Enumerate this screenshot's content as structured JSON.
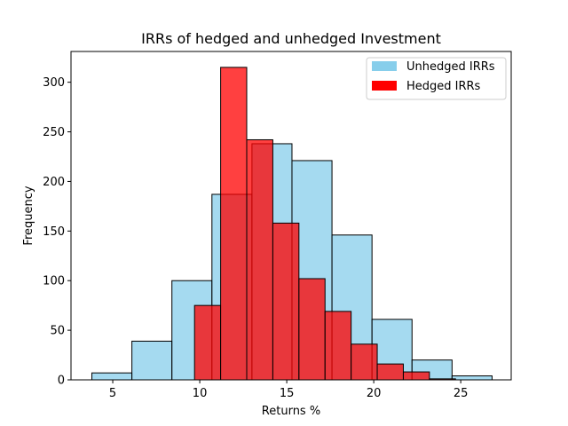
{
  "chart_data": {
    "type": "bar",
    "title": "IRRs of hedged and unhedged Investment",
    "xlabel": "Returns %",
    "ylabel": "Frequency",
    "xlim": [
      2.6,
      27.9
    ],
    "ylim": [
      0,
      331
    ],
    "xticks": [
      5,
      10,
      15,
      20,
      25
    ],
    "yticks": [
      0,
      50,
      100,
      150,
      200,
      250,
      300
    ],
    "legend_position": "top-right",
    "series": [
      {
        "name": "Unhedged IRRs",
        "color": "#87CEEB",
        "legend_color": "#87CEEB",
        "bins": [
          {
            "x0": 3.8,
            "x1": 6.1,
            "count": 7
          },
          {
            "x0": 6.1,
            "x1": 8.4,
            "count": 39
          },
          {
            "x0": 8.4,
            "x1": 10.7,
            "count": 100
          },
          {
            "x0": 10.7,
            "x1": 13.0,
            "count": 187
          },
          {
            "x0": 13.0,
            "x1": 15.3,
            "count": 238
          },
          {
            "x0": 15.3,
            "x1": 17.6,
            "count": 221
          },
          {
            "x0": 17.6,
            "x1": 19.9,
            "count": 146
          },
          {
            "x0": 19.9,
            "x1": 22.2,
            "count": 61
          },
          {
            "x0": 22.2,
            "x1": 24.5,
            "count": 20
          },
          {
            "x0": 24.5,
            "x1": 26.8,
            "count": 4
          }
        ]
      },
      {
        "name": "Hedged IRRs",
        "color": "#FF0000",
        "legend_color": "#FF0000",
        "bins": [
          {
            "x0": 9.7,
            "x1": 11.2,
            "count": 75
          },
          {
            "x0": 11.2,
            "x1": 12.7,
            "count": 315
          },
          {
            "x0": 12.7,
            "x1": 14.2,
            "count": 242
          },
          {
            "x0": 14.2,
            "x1": 15.7,
            "count": 158
          },
          {
            "x0": 15.7,
            "x1": 17.2,
            "count": 102
          },
          {
            "x0": 17.2,
            "x1": 18.7,
            "count": 69
          },
          {
            "x0": 18.7,
            "x1": 20.2,
            "count": 36
          },
          {
            "x0": 20.2,
            "x1": 21.7,
            "count": 16
          },
          {
            "x0": 21.7,
            "x1": 23.2,
            "count": 8
          },
          {
            "x0": 23.2,
            "x1": 24.7,
            "count": 1
          }
        ]
      }
    ]
  }
}
